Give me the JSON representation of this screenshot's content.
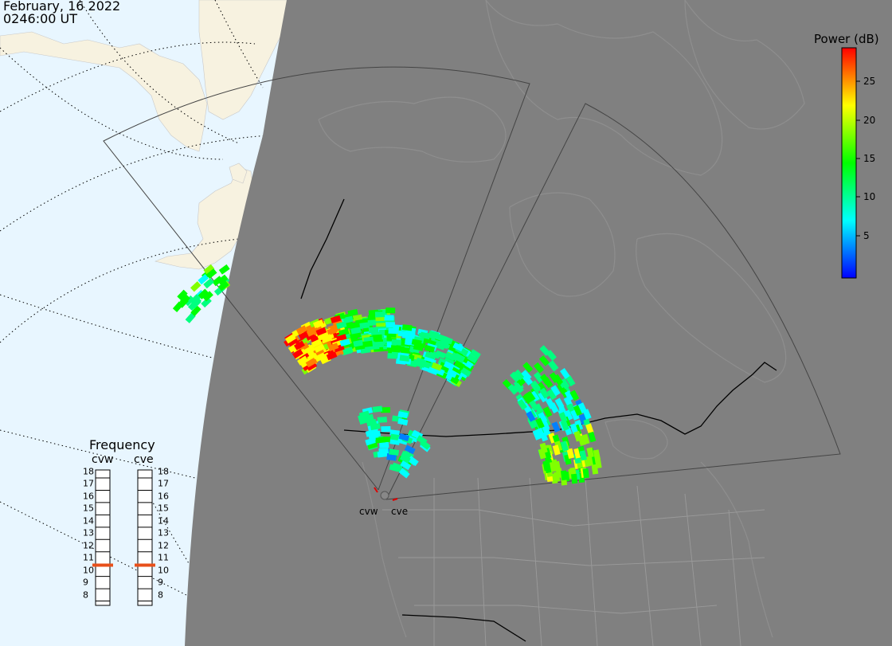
{
  "header": {
    "date": "February, 16 2022",
    "time": "0246:00 UT"
  },
  "colorbar": {
    "title": "Power (dB)",
    "ticks": [
      "25",
      "20",
      "15",
      "10",
      "5"
    ],
    "range": [
      0,
      30
    ],
    "colors": [
      "#0000ff",
      "#00ffff",
      "#00ff00",
      "#ffff00",
      "#ff0000"
    ]
  },
  "frequency": {
    "title": "Frequency",
    "radars": [
      {
        "label": "cvw",
        "value": 10.9
      },
      {
        "label": "cve",
        "value": 10.9
      }
    ],
    "scale": [
      "18",
      "17",
      "16",
      "15",
      "14",
      "13",
      "12",
      "11",
      "10",
      "9",
      "8"
    ]
  },
  "sites": {
    "west": "cvw",
    "east": "cve"
  },
  "map": {
    "ocean_color": "#e8f6ff",
    "land_day_color": "#f7f2e0",
    "night_color": "#808080",
    "marker_color": "#e8501a"
  }
}
